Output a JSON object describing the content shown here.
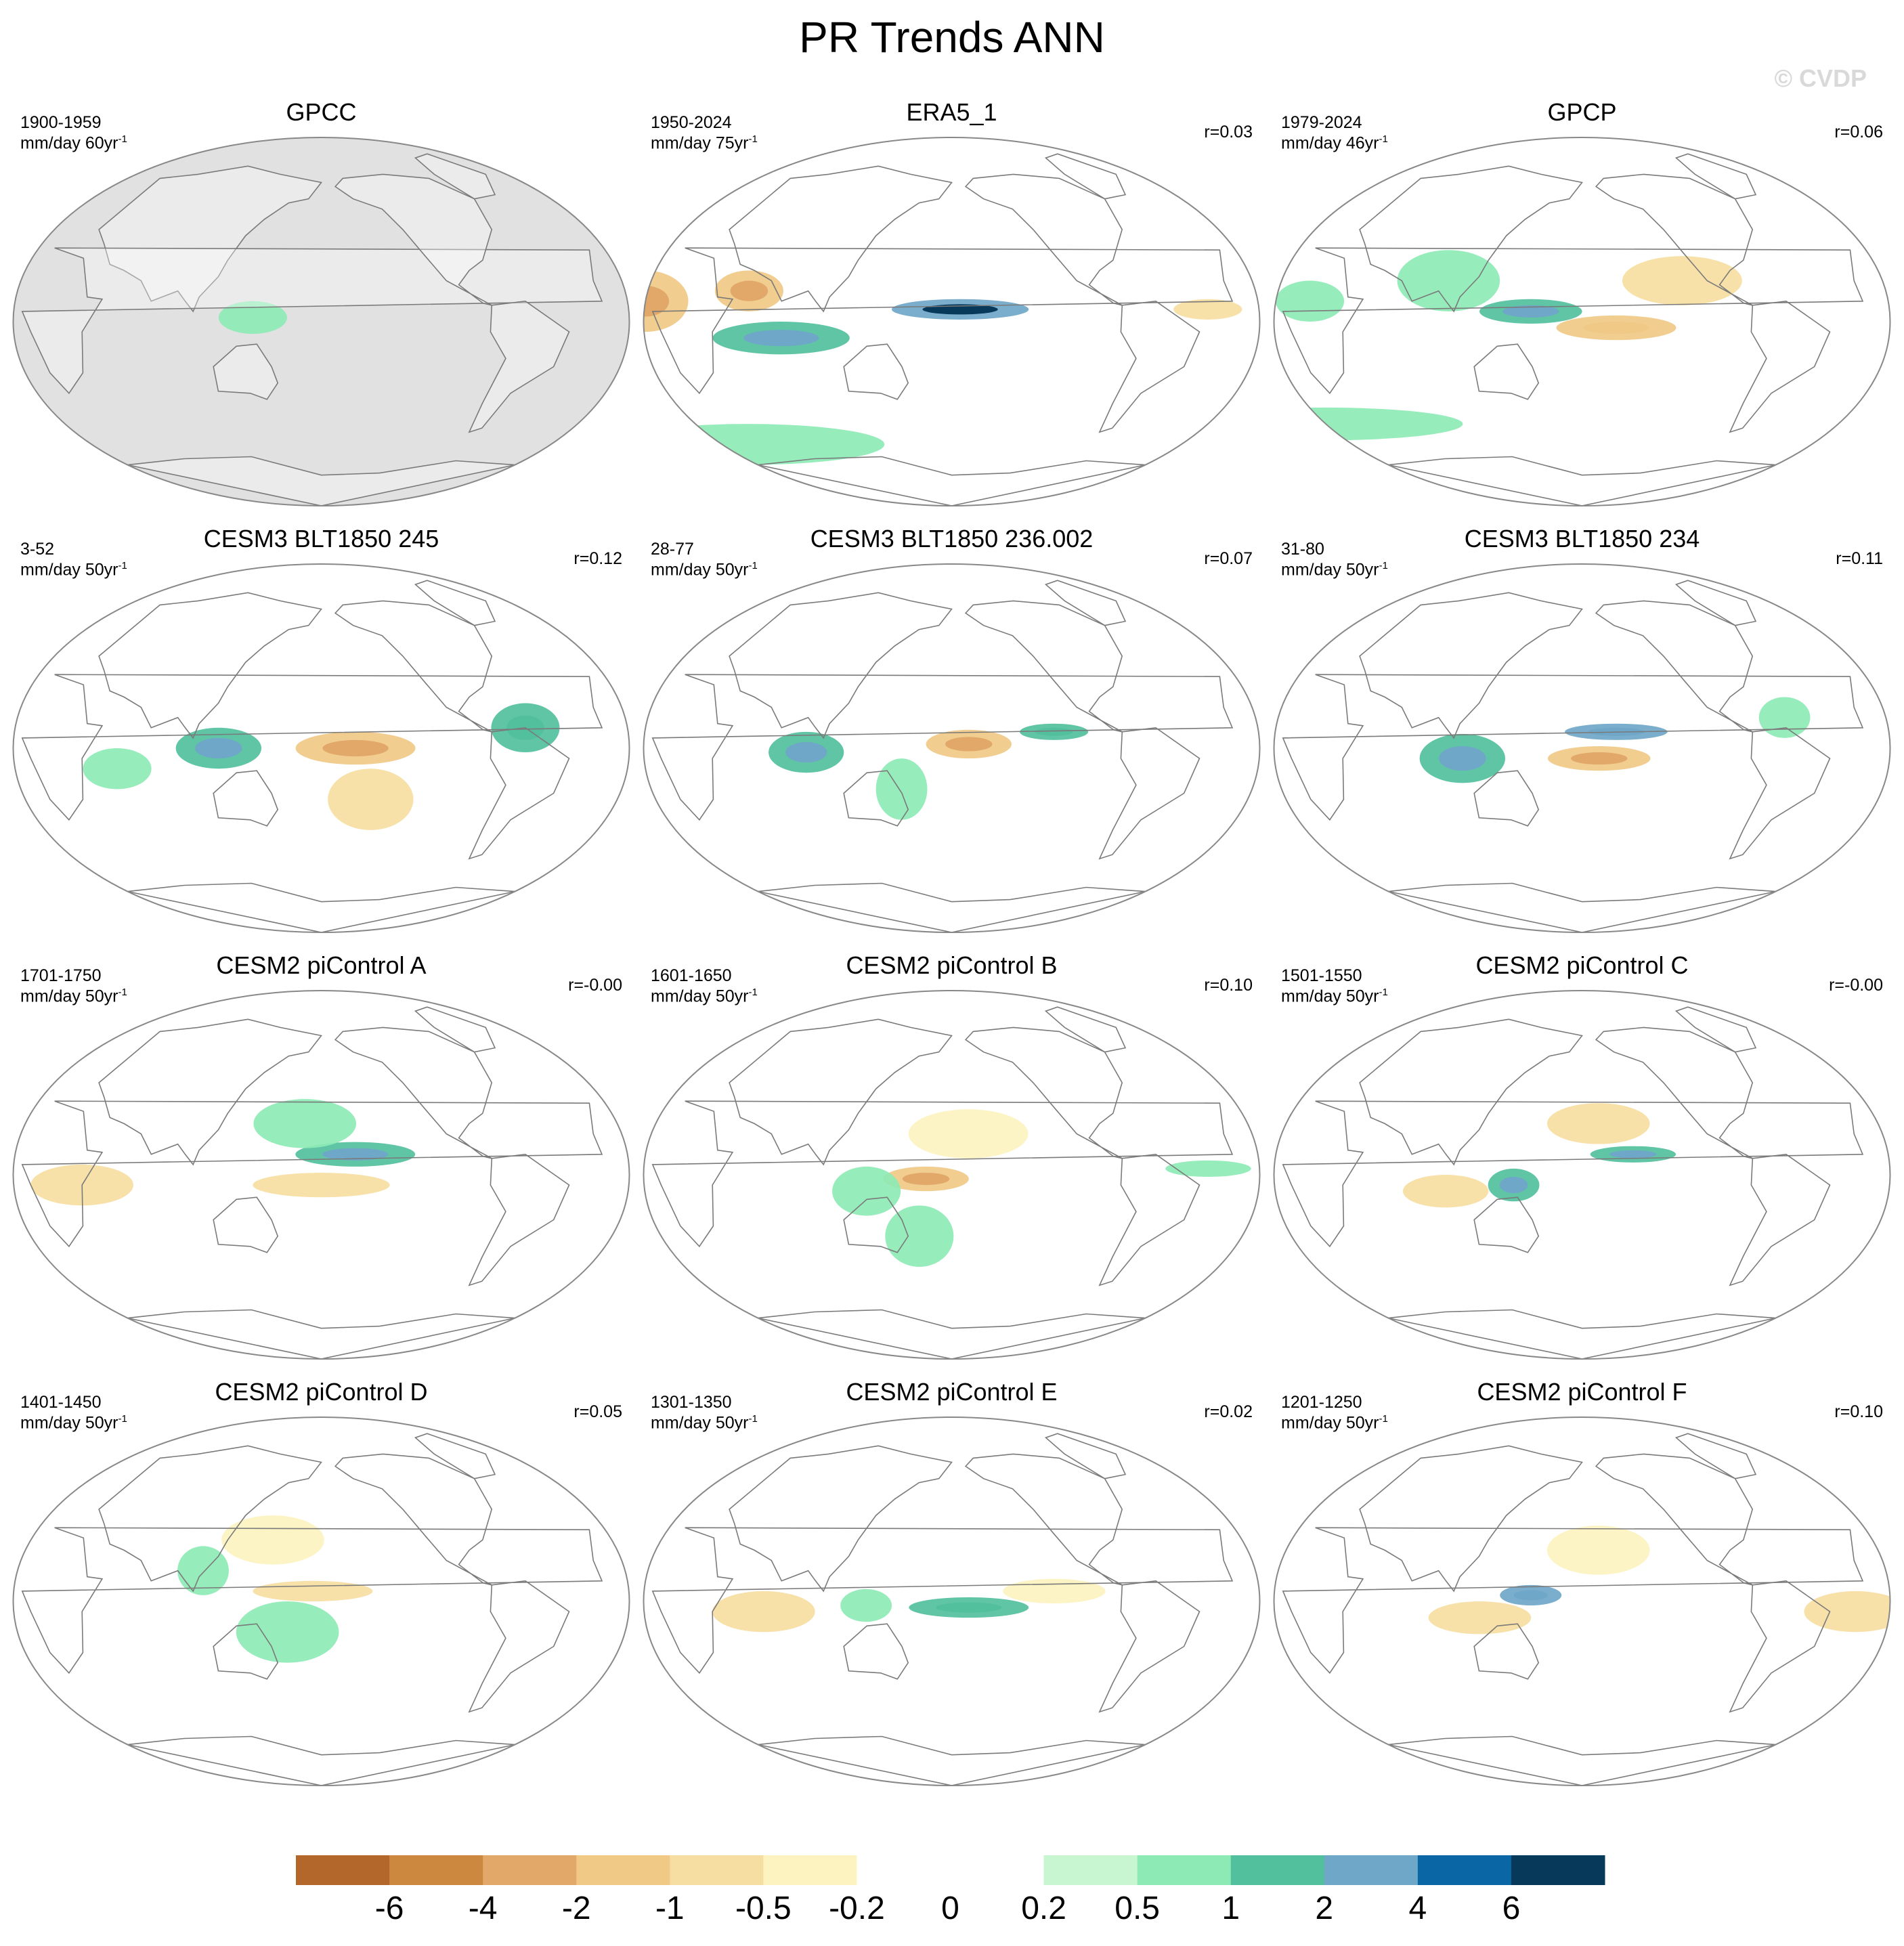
{
  "title": "PR Trends ANN",
  "watermark": "© CVDP",
  "units_prefix": "mm/day ",
  "units_suffix": "yr",
  "units_exponent": "-1",
  "colors": {
    "missing_land_gray": "#e1e1e1",
    "coastline": "#7a7a7a",
    "border": "#888888"
  },
  "chart_data": {
    "type": "heatmap",
    "variable": "Precipitation trend (PR), annual mean",
    "colorbar": {
      "tick_labels": [
        "-6",
        "-4",
        "-2",
        "-1",
        "-0.5",
        "-0.2",
        "0",
        "0.2",
        "0.5",
        "1",
        "2",
        "4",
        "6"
      ],
      "levels": [
        -6,
        -4,
        -2,
        -1,
        -0.5,
        -0.2,
        0,
        0.2,
        0.5,
        1,
        2,
        4,
        6
      ],
      "colors": [
        "#b3672b",
        "#cd8840",
        "#e1a86a",
        "#f0c987",
        "#f6dea2",
        "#fdf3c0",
        "#ffffff",
        "#ffffff",
        "#c8f6d0",
        "#8eeab5",
        "#52c09c",
        "#6fa7c8",
        "#0b66a6",
        "#06395a"
      ]
    },
    "panels": [
      {
        "title": "GPCC",
        "period": "1900-1959",
        "trend_length": "60",
        "r": "",
        "missing_ocean": true,
        "anomalies": [
          {
            "lon": 140,
            "lat": 2,
            "v": 0.8,
            "w": 20,
            "h": 8
          }
        ]
      },
      {
        "title": "ERA5_1",
        "period": "1950-2024",
        "trend_length": "75",
        "r": "r=0.03",
        "anomalies": [
          {
            "lon": -175,
            "lat": 6,
            "v": 3.5,
            "w": 40,
            "h": 5
          },
          {
            "lon": 80,
            "lat": -8,
            "v": 1.2,
            "w": 40,
            "h": 8
          },
          {
            "lon": 0,
            "lat": 10,
            "v": -1.5,
            "w": 25,
            "h": 15
          },
          {
            "lon": 60,
            "lat": 15,
            "v": -1.4,
            "w": 20,
            "h": 10
          },
          {
            "lon": 20,
            "lat": -60,
            "v": 0.6,
            "w": 80,
            "h": 10
          },
          {
            "lon": -30,
            "lat": 6,
            "v": -0.9,
            "w": 20,
            "h": 5
          }
        ]
      },
      {
        "title": "GPCP",
        "period": "1979-2024",
        "trend_length": "46",
        "r": "r=0.06",
        "anomalies": [
          {
            "lon": 150,
            "lat": 5,
            "v": 1.4,
            "w": 30,
            "h": 6
          },
          {
            "lon": -160,
            "lat": -3,
            "v": -1.1,
            "w": 35,
            "h": 6
          },
          {
            "lon": 100,
            "lat": 20,
            "v": 0.7,
            "w": 30,
            "h": 15
          },
          {
            "lon": -120,
            "lat": 20,
            "v": -0.6,
            "w": 35,
            "h": 12
          },
          {
            "lon": 0,
            "lat": -50,
            "v": 0.7,
            "w": 80,
            "h": 8
          },
          {
            "lon": 20,
            "lat": 10,
            "v": 0.7,
            "w": 20,
            "h": 10
          }
        ]
      },
      {
        "title": "CESM3 BLT1850 245",
        "period": "3-52",
        "trend_length": "50",
        "r": "r=0.12",
        "anomalies": [
          {
            "lon": -160,
            "lat": 0,
            "v": -1.5,
            "w": 35,
            "h": 8
          },
          {
            "lon": 120,
            "lat": 0,
            "v": 1.2,
            "w": 25,
            "h": 10
          },
          {
            "lon": -60,
            "lat": 10,
            "v": 1.0,
            "w": 20,
            "h": 12
          },
          {
            "lon": -150,
            "lat": -25,
            "v": -0.7,
            "w": 25,
            "h": 15
          },
          {
            "lon": 60,
            "lat": -10,
            "v": 0.6,
            "w": 20,
            "h": 10
          }
        ]
      },
      {
        "title": "CESM3 BLT1850 236.002",
        "period": "28-77",
        "trend_length": "50",
        "r": "r=0.07",
        "anomalies": [
          {
            "lon": -170,
            "lat": 2,
            "v": -1.6,
            "w": 25,
            "h": 7
          },
          {
            "lon": 95,
            "lat": -2,
            "v": 1.5,
            "w": 22,
            "h": 10
          },
          {
            "lon": -120,
            "lat": 8,
            "v": 1.1,
            "w": 20,
            "h": 4
          },
          {
            "lon": 150,
            "lat": -20,
            "v": 0.8,
            "w": 15,
            "h": 15
          }
        ]
      },
      {
        "title": "CESM3 BLT1850 234",
        "period": "31-80",
        "trend_length": "50",
        "r": "r=0.11",
        "anomalies": [
          {
            "lon": -160,
            "lat": 8,
            "v": 2.0,
            "w": 30,
            "h": 4
          },
          {
            "lon": -170,
            "lat": -5,
            "v": -1.5,
            "w": 30,
            "h": 6
          },
          {
            "lon": 110,
            "lat": -5,
            "v": 1.3,
            "w": 25,
            "h": 12
          },
          {
            "lon": -60,
            "lat": 15,
            "v": 0.9,
            "w": 15,
            "h": 10
          }
        ]
      },
      {
        "title": "CESM2 piControl A",
        "period": "1701-1750",
        "trend_length": "50",
        "r": "r=-0.00",
        "anomalies": [
          {
            "lon": -160,
            "lat": 10,
            "v": 1.2,
            "w": 35,
            "h": 6
          },
          {
            "lon": 180,
            "lat": -5,
            "v": -0.9,
            "w": 40,
            "h": 6
          },
          {
            "lon": 170,
            "lat": 25,
            "v": 0.6,
            "w": 30,
            "h": 12
          },
          {
            "lon": 40,
            "lat": -5,
            "v": -0.6,
            "w": 30,
            "h": 10
          }
        ]
      },
      {
        "title": "CESM2 piControl B",
        "period": "1601-1650",
        "trend_length": "50",
        "r": "r=0.10",
        "anomalies": [
          {
            "lon": 165,
            "lat": -2,
            "v": -1.3,
            "w": 25,
            "h": 6
          },
          {
            "lon": 130,
            "lat": -8,
            "v": 0.9,
            "w": 20,
            "h": 12
          },
          {
            "lon": -30,
            "lat": 3,
            "v": 0.8,
            "w": 25,
            "h": 4
          },
          {
            "lon": -170,
            "lat": 20,
            "v": -0.5,
            "w": 35,
            "h": 12
          },
          {
            "lon": 160,
            "lat": -30,
            "v": 0.6,
            "w": 20,
            "h": 15
          }
        ]
      },
      {
        "title": "CESM2 piControl C",
        "period": "1501-1550",
        "trend_length": "50",
        "r": "r=-0.00",
        "anomalies": [
          {
            "lon": -150,
            "lat": 10,
            "v": 1.4,
            "w": 25,
            "h": 4
          },
          {
            "lon": 140,
            "lat": -5,
            "v": 1.7,
            "w": 15,
            "h": 8
          },
          {
            "lon": 100,
            "lat": -8,
            "v": -0.7,
            "w": 25,
            "h": 8
          },
          {
            "lon": -170,
            "lat": 25,
            "v": -0.6,
            "w": 30,
            "h": 10
          }
        ]
      },
      {
        "title": "CESM2 piControl D",
        "period": "1401-1450",
        "trend_length": "50",
        "r": "r=0.05",
        "anomalies": [
          {
            "lon": 175,
            "lat": 5,
            "v": -0.9,
            "w": 35,
            "h": 5
          },
          {
            "lon": 160,
            "lat": -15,
            "v": 0.7,
            "w": 30,
            "h": 15
          },
          {
            "lon": 150,
            "lat": 30,
            "v": -0.5,
            "w": 30,
            "h": 12
          },
          {
            "lon": 110,
            "lat": 15,
            "v": 0.6,
            "w": 15,
            "h": 12
          }
        ]
      },
      {
        "title": "CESM2 piControl E",
        "period": "1301-1350",
        "trend_length": "50",
        "r": "r=0.02",
        "anomalies": [
          {
            "lon": -170,
            "lat": -3,
            "v": 1.1,
            "w": 35,
            "h": 5
          },
          {
            "lon": 70,
            "lat": -5,
            "v": -0.7,
            "w": 30,
            "h": 10
          },
          {
            "lon": 130,
            "lat": -2,
            "v": 0.8,
            "w": 15,
            "h": 8
          },
          {
            "lon": -120,
            "lat": 5,
            "v": -0.5,
            "w": 30,
            "h": 6
          }
        ]
      },
      {
        "title": "CESM2 piControl F",
        "period": "1201-1250",
        "trend_length": "50",
        "r": "r=0.10",
        "anomalies": [
          {
            "lon": 150,
            "lat": 3,
            "v": 2.0,
            "w": 18,
            "h": 5
          },
          {
            "lon": 120,
            "lat": -8,
            "v": -0.9,
            "w": 30,
            "h": 8
          },
          {
            "lon": -20,
            "lat": -5,
            "v": -0.6,
            "w": 30,
            "h": 10
          },
          {
            "lon": -170,
            "lat": 25,
            "v": -0.5,
            "w": 30,
            "h": 12
          }
        ]
      }
    ]
  }
}
